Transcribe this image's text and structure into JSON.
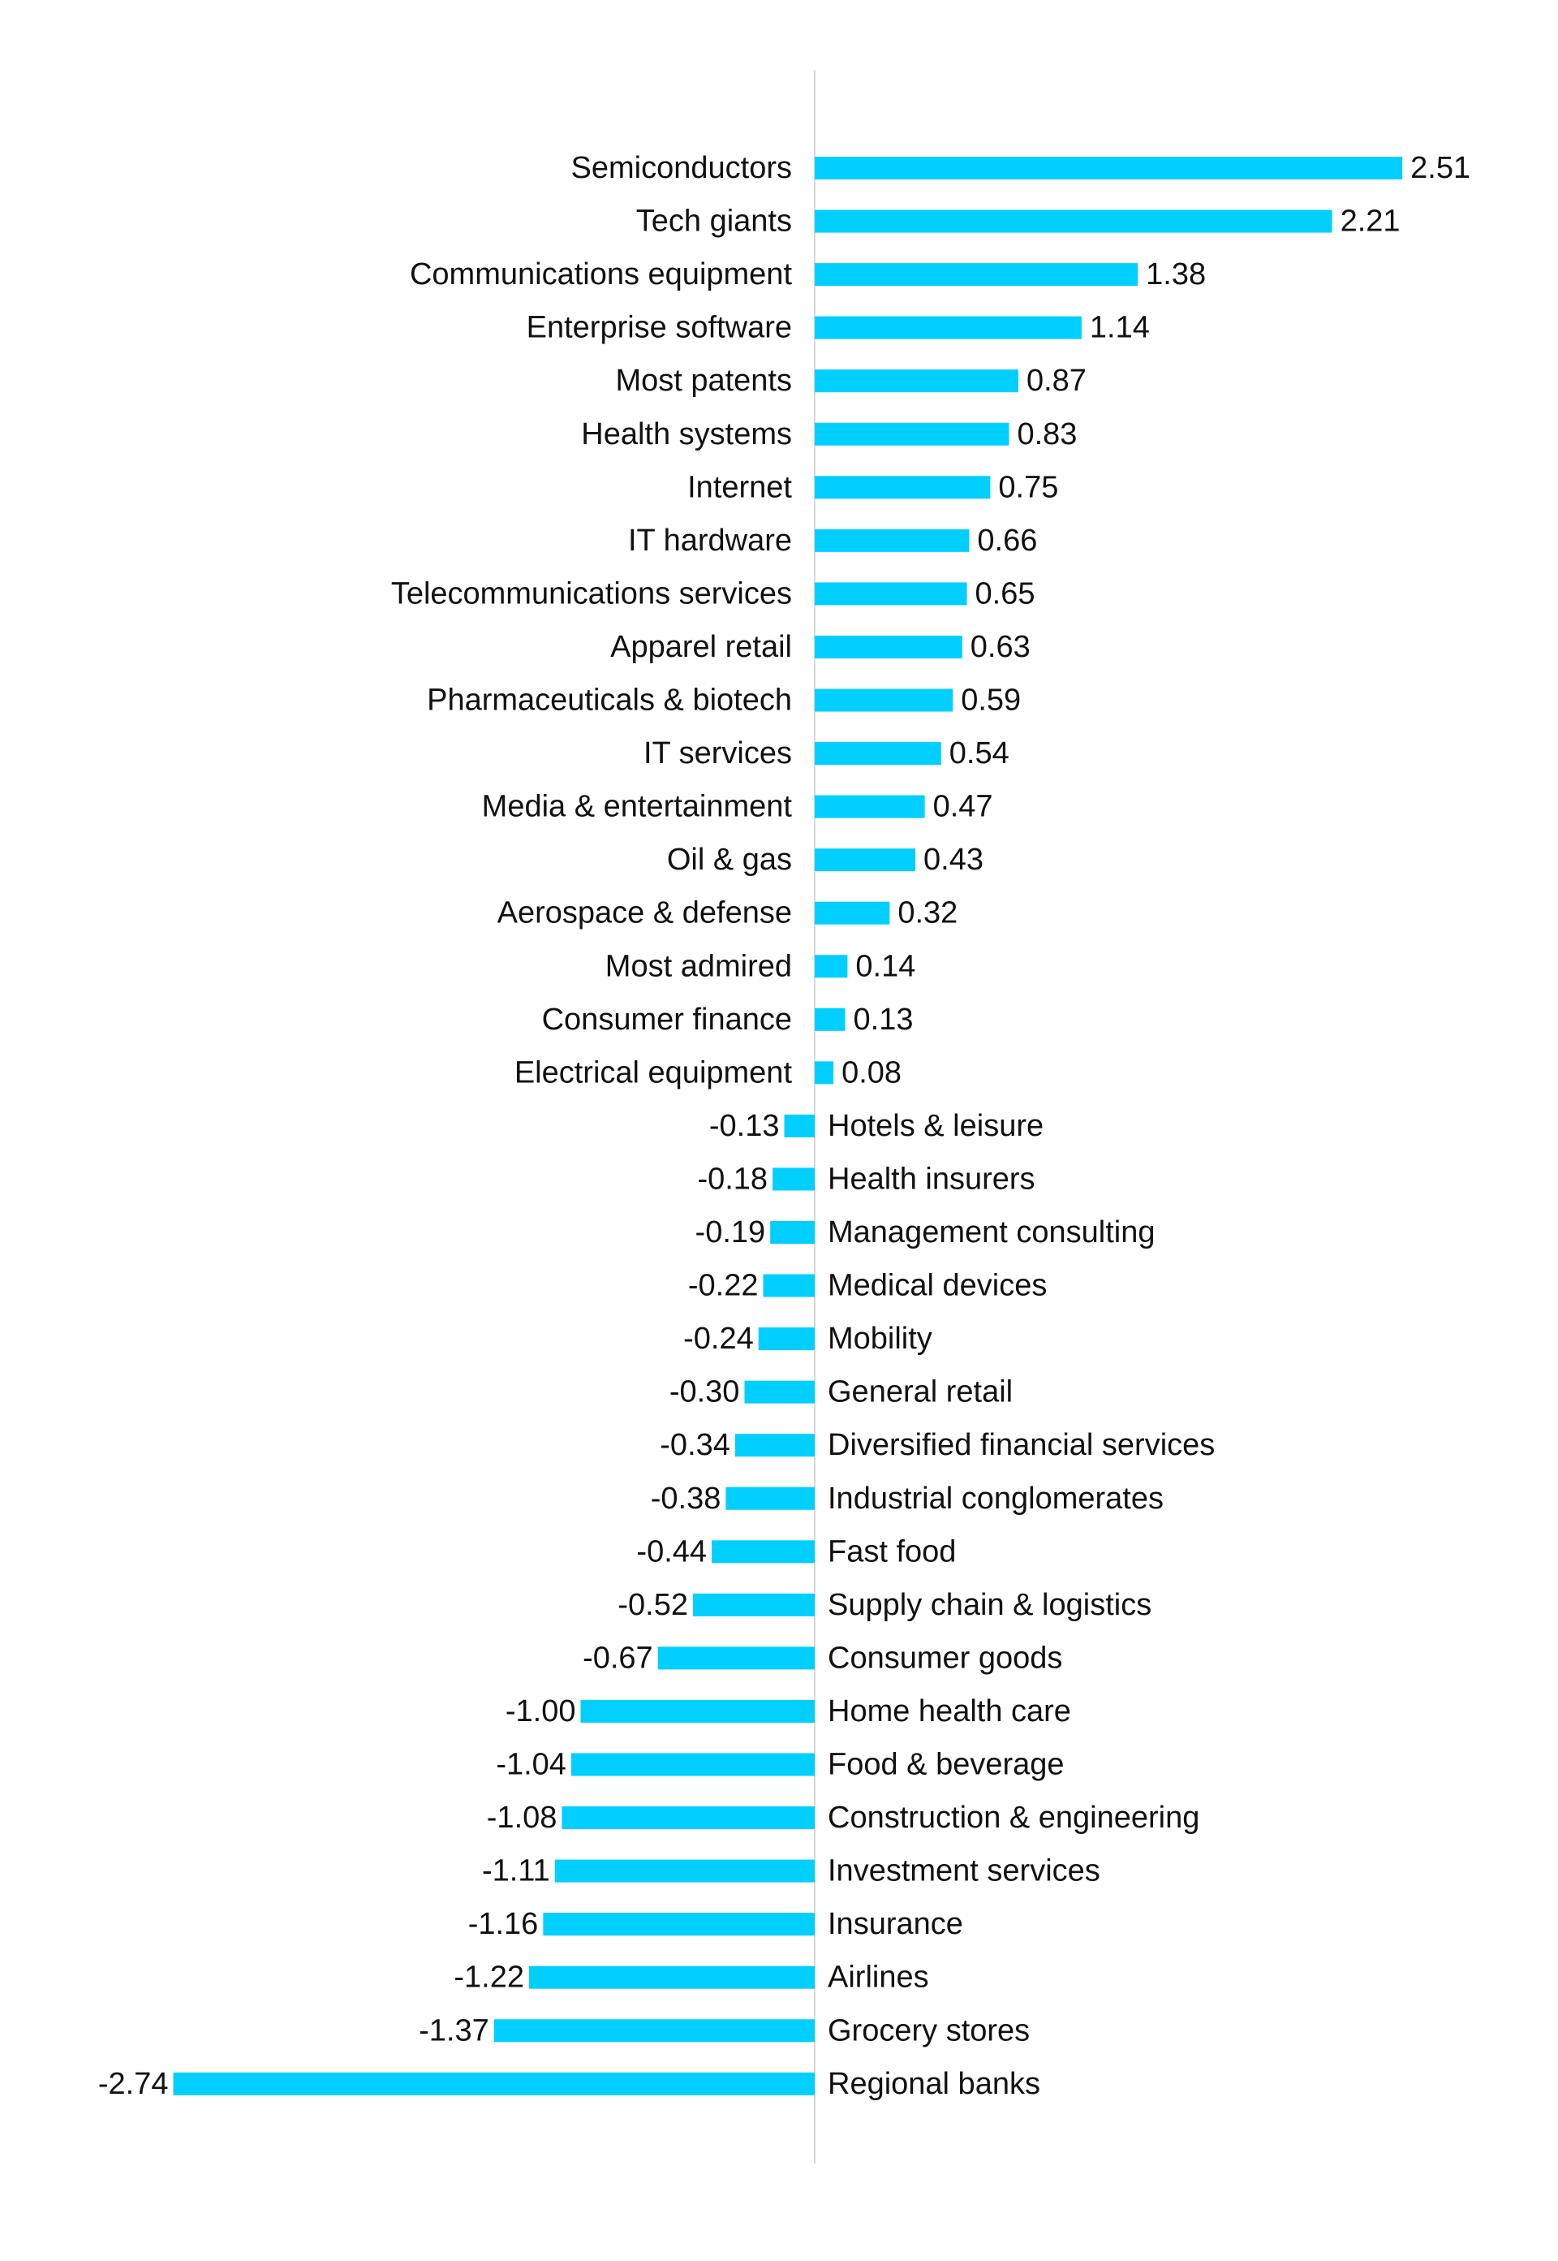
{
  "chart_data": {
    "type": "bar",
    "orientation": "horizontal",
    "bar_color": "#00CFFF",
    "axis_color": "#d9d9d9",
    "text_color": "#111111",
    "xlim": [
      -2.74,
      2.51
    ],
    "grid": false,
    "title": "",
    "xlabel": "",
    "ylabel": "",
    "categories": [
      "Semiconductors",
      "Tech giants",
      "Communications equipment",
      "Enterprise software",
      "Most patents",
      "Health systems",
      "Internet",
      "IT hardware",
      "Telecommunications services",
      "Apparel retail",
      "Pharmaceuticals & biotech",
      "IT services",
      "Media & entertainment",
      "Oil & gas",
      "Aerospace & defense",
      "Most admired",
      "Consumer finance",
      "Electrical equipment",
      "Hotels & leisure",
      "Health insurers",
      "Management consulting",
      "Medical devices",
      "Mobility",
      "General retail",
      "Diversified financial services",
      "Industrial conglomerates",
      "Fast food",
      "Supply chain & logistics",
      "Consumer goods",
      "Home health care",
      "Food & beverage",
      "Construction & engineering",
      "Investment services",
      "Insurance",
      "Airlines",
      "Grocery stores",
      "Regional banks"
    ],
    "values": [
      2.51,
      2.21,
      1.38,
      1.14,
      0.87,
      0.83,
      0.75,
      0.66,
      0.65,
      0.63,
      0.59,
      0.54,
      0.47,
      0.43,
      0.32,
      0.14,
      0.13,
      0.08,
      -0.13,
      -0.18,
      -0.19,
      -0.22,
      -0.24,
      -0.3,
      -0.34,
      -0.38,
      -0.44,
      -0.52,
      -0.67,
      -1.0,
      -1.04,
      -1.08,
      -1.11,
      -1.16,
      -1.22,
      -1.37,
      -2.74
    ],
    "value_labels": [
      "2.51",
      "2.21",
      "1.38",
      "1.14",
      "0.87",
      "0.83",
      "0.75",
      "0.66",
      "0.65",
      "0.63",
      "0.59",
      "0.54",
      "0.47",
      "0.43",
      "0.32",
      "0.14",
      "0.13",
      "0.08",
      "-0.13",
      "-0.18",
      "-0.19",
      "-0.22",
      "-0.24",
      "-0.30",
      "-0.34",
      "-0.38",
      "-0.44",
      "-0.52",
      "-0.67",
      "-1.00",
      "-1.04",
      "-1.08",
      "-1.11",
      "-1.16",
      "-1.22",
      "-1.37",
      "-2.74"
    ]
  }
}
